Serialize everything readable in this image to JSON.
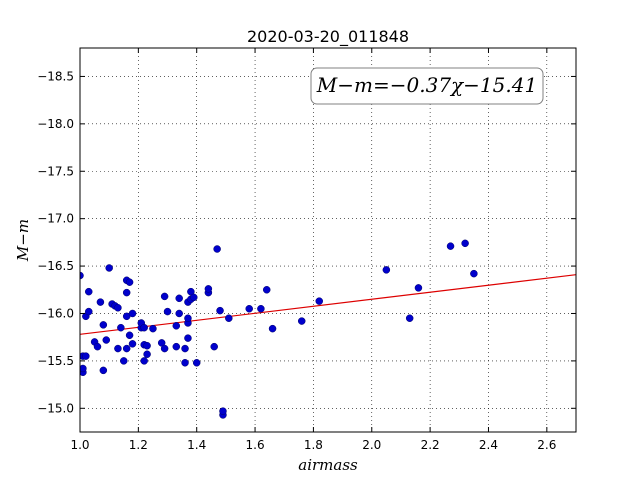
{
  "chart_data": {
    "type": "scatter",
    "title": "2020-03-20_011848",
    "xlabel": "airmass",
    "ylabel": "M−m",
    "xlim": [
      1.0,
      2.7
    ],
    "ylim": [
      -18.8,
      -14.75
    ],
    "y_inverted": true,
    "grid": true,
    "x_ticks": [
      1.0,
      1.2,
      1.4,
      1.6,
      1.8,
      2.0,
      2.2,
      2.4,
      2.6
    ],
    "y_ticks": [
      -15.0,
      -15.5,
      -16.0,
      -16.5,
      -17.0,
      -17.5,
      -18.0,
      -18.5
    ],
    "x_tick_labels": [
      "1.0",
      "1.2",
      "1.4",
      "1.6",
      "1.8",
      "2.0",
      "2.2",
      "2.4",
      "2.6"
    ],
    "y_tick_labels": [
      "−15.0",
      "−15.5",
      "−16.0",
      "−16.5",
      "−17.0",
      "−17.5",
      "−18.0",
      "−18.5"
    ],
    "annotation": "M−m=−0.37χ−15.41",
    "fit": {
      "slope": -0.37,
      "intercept": -15.41,
      "color": "#dd0000"
    },
    "marker_color": "#0000cc",
    "points": [
      [
        1.0,
        -16.4
      ],
      [
        1.01,
        -15.38
      ],
      [
        1.01,
        -15.42
      ],
      [
        1.01,
        -15.55
      ],
      [
        1.02,
        -15.55
      ],
      [
        1.02,
        -15.97
      ],
      [
        1.03,
        -16.02
      ],
      [
        1.03,
        -16.23
      ],
      [
        1.05,
        -15.7
      ],
      [
        1.06,
        -15.65
      ],
      [
        1.07,
        -16.12
      ],
      [
        1.08,
        -15.4
      ],
      [
        1.08,
        -15.88
      ],
      [
        1.09,
        -15.72
      ],
      [
        1.1,
        -16.48
      ],
      [
        1.11,
        -16.1
      ],
      [
        1.12,
        -16.08
      ],
      [
        1.13,
        -16.06
      ],
      [
        1.13,
        -15.63
      ],
      [
        1.14,
        -15.85
      ],
      [
        1.15,
        -15.5
      ],
      [
        1.16,
        -15.63
      ],
      [
        1.16,
        -15.97
      ],
      [
        1.16,
        -16.22
      ],
      [
        1.16,
        -16.35
      ],
      [
        1.17,
        -16.33
      ],
      [
        1.17,
        -15.77
      ],
      [
        1.18,
        -15.68
      ],
      [
        1.18,
        -16.0
      ],
      [
        1.21,
        -15.85
      ],
      [
        1.21,
        -15.9
      ],
      [
        1.22,
        -15.5
      ],
      [
        1.22,
        -15.67
      ],
      [
        1.22,
        -15.85
      ],
      [
        1.23,
        -15.66
      ],
      [
        1.23,
        -15.57
      ],
      [
        1.25,
        -15.84
      ],
      [
        1.28,
        -15.69
      ],
      [
        1.29,
        -15.63
      ],
      [
        1.29,
        -16.18
      ],
      [
        1.3,
        -16.02
      ],
      [
        1.33,
        -15.65
      ],
      [
        1.33,
        -15.87
      ],
      [
        1.34,
        -16.0
      ],
      [
        1.34,
        -16.16
      ],
      [
        1.36,
        -15.48
      ],
      [
        1.36,
        -15.63
      ],
      [
        1.37,
        -15.74
      ],
      [
        1.37,
        -15.9
      ],
      [
        1.37,
        -15.95
      ],
      [
        1.37,
        -16.12
      ],
      [
        1.38,
        -16.23
      ],
      [
        1.38,
        -16.15
      ],
      [
        1.39,
        -16.17
      ],
      [
        1.4,
        -15.48
      ],
      [
        1.44,
        -16.22
      ],
      [
        1.44,
        -16.26
      ],
      [
        1.46,
        -15.65
      ],
      [
        1.47,
        -16.68
      ],
      [
        1.48,
        -16.03
      ],
      [
        1.49,
        -14.93
      ],
      [
        1.49,
        -14.97
      ],
      [
        1.51,
        -15.95
      ],
      [
        1.58,
        -16.05
      ],
      [
        1.62,
        -16.05
      ],
      [
        1.64,
        -16.25
      ],
      [
        1.66,
        -15.84
      ],
      [
        1.76,
        -15.92
      ],
      [
        1.82,
        -16.13
      ],
      [
        2.05,
        -16.46
      ],
      [
        2.13,
        -15.95
      ],
      [
        2.16,
        -16.27
      ],
      [
        2.27,
        -16.71
      ],
      [
        2.32,
        -16.74
      ],
      [
        2.35,
        -16.42
      ]
    ]
  }
}
